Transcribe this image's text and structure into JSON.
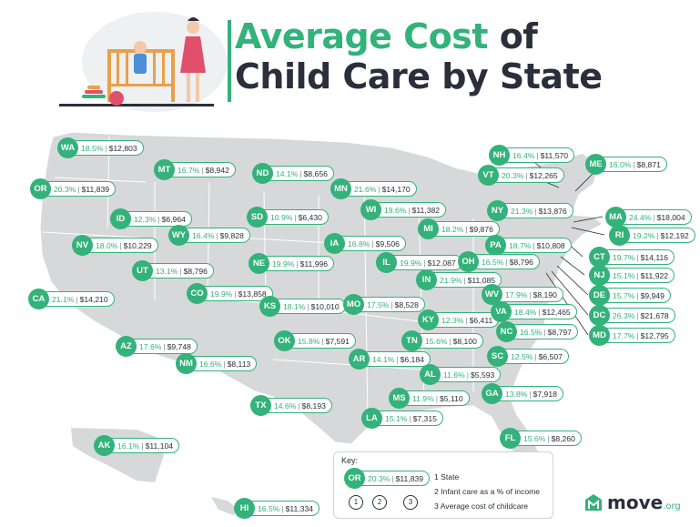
{
  "title": {
    "line1_green": "Average Cost",
    "line1_rest": "of",
    "line2": "Child Care by State"
  },
  "colors": {
    "accent": "#33b27a",
    "map": "#d7d8da",
    "text": "#2a2f3b"
  },
  "states": [
    {
      "abbr": "WA",
      "pct": "18.5%",
      "cost": "$12,803"
    },
    {
      "abbr": "MT",
      "pct": "16.7%",
      "cost": "$8,942"
    },
    {
      "abbr": "ND",
      "pct": "14.1%",
      "cost": "$8,656"
    },
    {
      "abbr": "MN",
      "pct": "21.6%",
      "cost": "$14,170"
    },
    {
      "abbr": "OR",
      "pct": "20.3%",
      "cost": "$11,839"
    },
    {
      "abbr": "ID",
      "pct": "12.3%",
      "cost": "$6,964"
    },
    {
      "abbr": "SD",
      "pct": "10.9%",
      "cost": "$6,430"
    },
    {
      "abbr": "WI",
      "pct": "19.6%",
      "cost": "$11,382"
    },
    {
      "abbr": "WY",
      "pct": "16.4%",
      "cost": "$9,828"
    },
    {
      "abbr": "NV",
      "pct": "18.0%",
      "cost": "$10,229"
    },
    {
      "abbr": "IA",
      "pct": "16.8%",
      "cost": "$9,506"
    },
    {
      "abbr": "MI",
      "pct": "18.2%",
      "cost": "$9,876"
    },
    {
      "abbr": "NE",
      "pct": "19.9%",
      "cost": "$11,996"
    },
    {
      "abbr": "IL",
      "pct": "19.9%",
      "cost": "$12,087"
    },
    {
      "abbr": "UT",
      "pct": "13.1%",
      "cost": "$8,796"
    },
    {
      "abbr": "IN",
      "pct": "21.9%",
      "cost": "$11,085"
    },
    {
      "abbr": "CO",
      "pct": "19.9%",
      "cost": "$13,858"
    },
    {
      "abbr": "KS",
      "pct": "18.1%",
      "cost": "$10,010"
    },
    {
      "abbr": "MO",
      "pct": "17.5%",
      "cost": "$8,528"
    },
    {
      "abbr": "CA",
      "pct": "21.1%",
      "cost": "$14,210"
    },
    {
      "abbr": "KY",
      "pct": "12.3%",
      "cost": "$6,411"
    },
    {
      "abbr": "OK",
      "pct": "15.8%",
      "cost": "$7,591"
    },
    {
      "abbr": "TN",
      "pct": "15.6%",
      "cost": "$8,100"
    },
    {
      "abbr": "AZ",
      "pct": "17.6%",
      "cost": "$9,748"
    },
    {
      "abbr": "AR",
      "pct": "14.1%",
      "cost": "$6,184"
    },
    {
      "abbr": "NM",
      "pct": "16.6%",
      "cost": "$8,113"
    },
    {
      "abbr": "AL",
      "pct": "11.6%",
      "cost": "$5,593"
    },
    {
      "abbr": "MS",
      "pct": "11.9%",
      "cost": "$5,110"
    },
    {
      "abbr": "TX",
      "pct": "14.6%",
      "cost": "$8,193"
    },
    {
      "abbr": "LA",
      "pct": "15.1%",
      "cost": "$7,315"
    },
    {
      "abbr": "GA",
      "pct": "13.8%",
      "cost": "$7,918"
    },
    {
      "abbr": "SC",
      "pct": "12.5%",
      "cost": "$6,507"
    },
    {
      "abbr": "FL",
      "pct": "15.6%",
      "cost": "$8,260"
    },
    {
      "abbr": "AK",
      "pct": "16.1%",
      "cost": "$11,104"
    },
    {
      "abbr": "HI",
      "pct": "16.5%",
      "cost": "$11,334"
    },
    {
      "abbr": "NH",
      "pct": "16.4%",
      "cost": "$11,570"
    },
    {
      "abbr": "VT",
      "pct": "20.3%",
      "cost": "$12,265"
    },
    {
      "abbr": "ME",
      "pct": "16.0%",
      "cost": "$8,871"
    },
    {
      "abbr": "NY",
      "pct": "21.3%",
      "cost": "$13,876"
    },
    {
      "abbr": "MA",
      "pct": "24.4%",
      "cost": "$18,004"
    },
    {
      "abbr": "RI",
      "pct": "19.2%",
      "cost": "$12,192"
    },
    {
      "abbr": "PA",
      "pct": "18.7%",
      "cost": "$10,808"
    },
    {
      "abbr": "CT",
      "pct": "19.7%",
      "cost": "$14,116"
    },
    {
      "abbr": "OH",
      "pct": "16.5%",
      "cost": "$8,796"
    },
    {
      "abbr": "NJ",
      "pct": "15.1%",
      "cost": "$11,922"
    },
    {
      "abbr": "WV",
      "pct": "17.9%",
      "cost": "$8,190"
    },
    {
      "abbr": "DE",
      "pct": "15.7%",
      "cost": "$9,949"
    },
    {
      "abbr": "VA",
      "pct": "18.4%",
      "cost": "$12,465"
    },
    {
      "abbr": "DC",
      "pct": "26.3%",
      "cost": "$21,678"
    },
    {
      "abbr": "NC",
      "pct": "16.5%",
      "cost": "$8,797"
    },
    {
      "abbr": "MD",
      "pct": "17.7%",
      "cost": "$12,795"
    }
  ],
  "key": {
    "title": "Key:",
    "example": {
      "abbr": "OR",
      "pct": "20.3%",
      "cost": "$11,839"
    },
    "numbers": [
      "1",
      "2",
      "3"
    ],
    "items": [
      "1  State",
      "2  Infant care as a % of income",
      "3  Average cost of childcare"
    ]
  },
  "logo": {
    "word": "move",
    "tld": ".org"
  }
}
